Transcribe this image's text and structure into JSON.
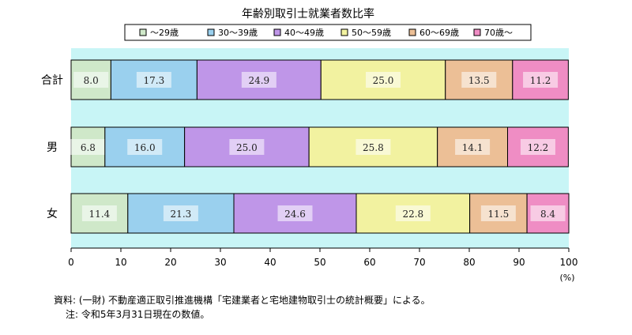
{
  "chart_data": {
    "type": "bar",
    "orientation": "horizontal",
    "stacked": true,
    "title": "年齢別取引士就業者数比率",
    "categories": [
      "合計",
      "男",
      "女"
    ],
    "series": [
      {
        "name": "〜29歳",
        "color": "#cfe8c9",
        "values": [
          8.0,
          6.8,
          11.4
        ]
      },
      {
        "name": "30〜39歳",
        "color": "#9ad0ee",
        "values": [
          17.3,
          16.0,
          21.3
        ]
      },
      {
        "name": "40〜49歳",
        "color": "#bf96e8",
        "values": [
          24.9,
          25.0,
          24.6
        ]
      },
      {
        "name": "50〜59歳",
        "color": "#f2f2a0",
        "values": [
          25.0,
          25.8,
          22.8
        ]
      },
      {
        "name": "60〜69歳",
        "color": "#ecbf96",
        "values": [
          13.5,
          14.1,
          11.5
        ]
      },
      {
        "name": "70歳〜",
        "color": "#ef8dc4",
        "values": [
          11.2,
          12.2,
          8.4
        ]
      }
    ],
    "xlim": [
      0,
      100
    ],
    "xticks": [
      "0",
      "10",
      "20",
      "30",
      "40",
      "50",
      "60",
      "70",
      "80",
      "90",
      "100"
    ],
    "xunit": "(%)",
    "plot_background": "#c8f5f6",
    "legend_position": "top"
  },
  "notes": {
    "source": "資料: (一財) 不動産適正取引推進機構「宅建業者と宅地建物取引士の統計概要」による。",
    "footnote": "注: 令和5年3月31日現在の数値。"
  }
}
